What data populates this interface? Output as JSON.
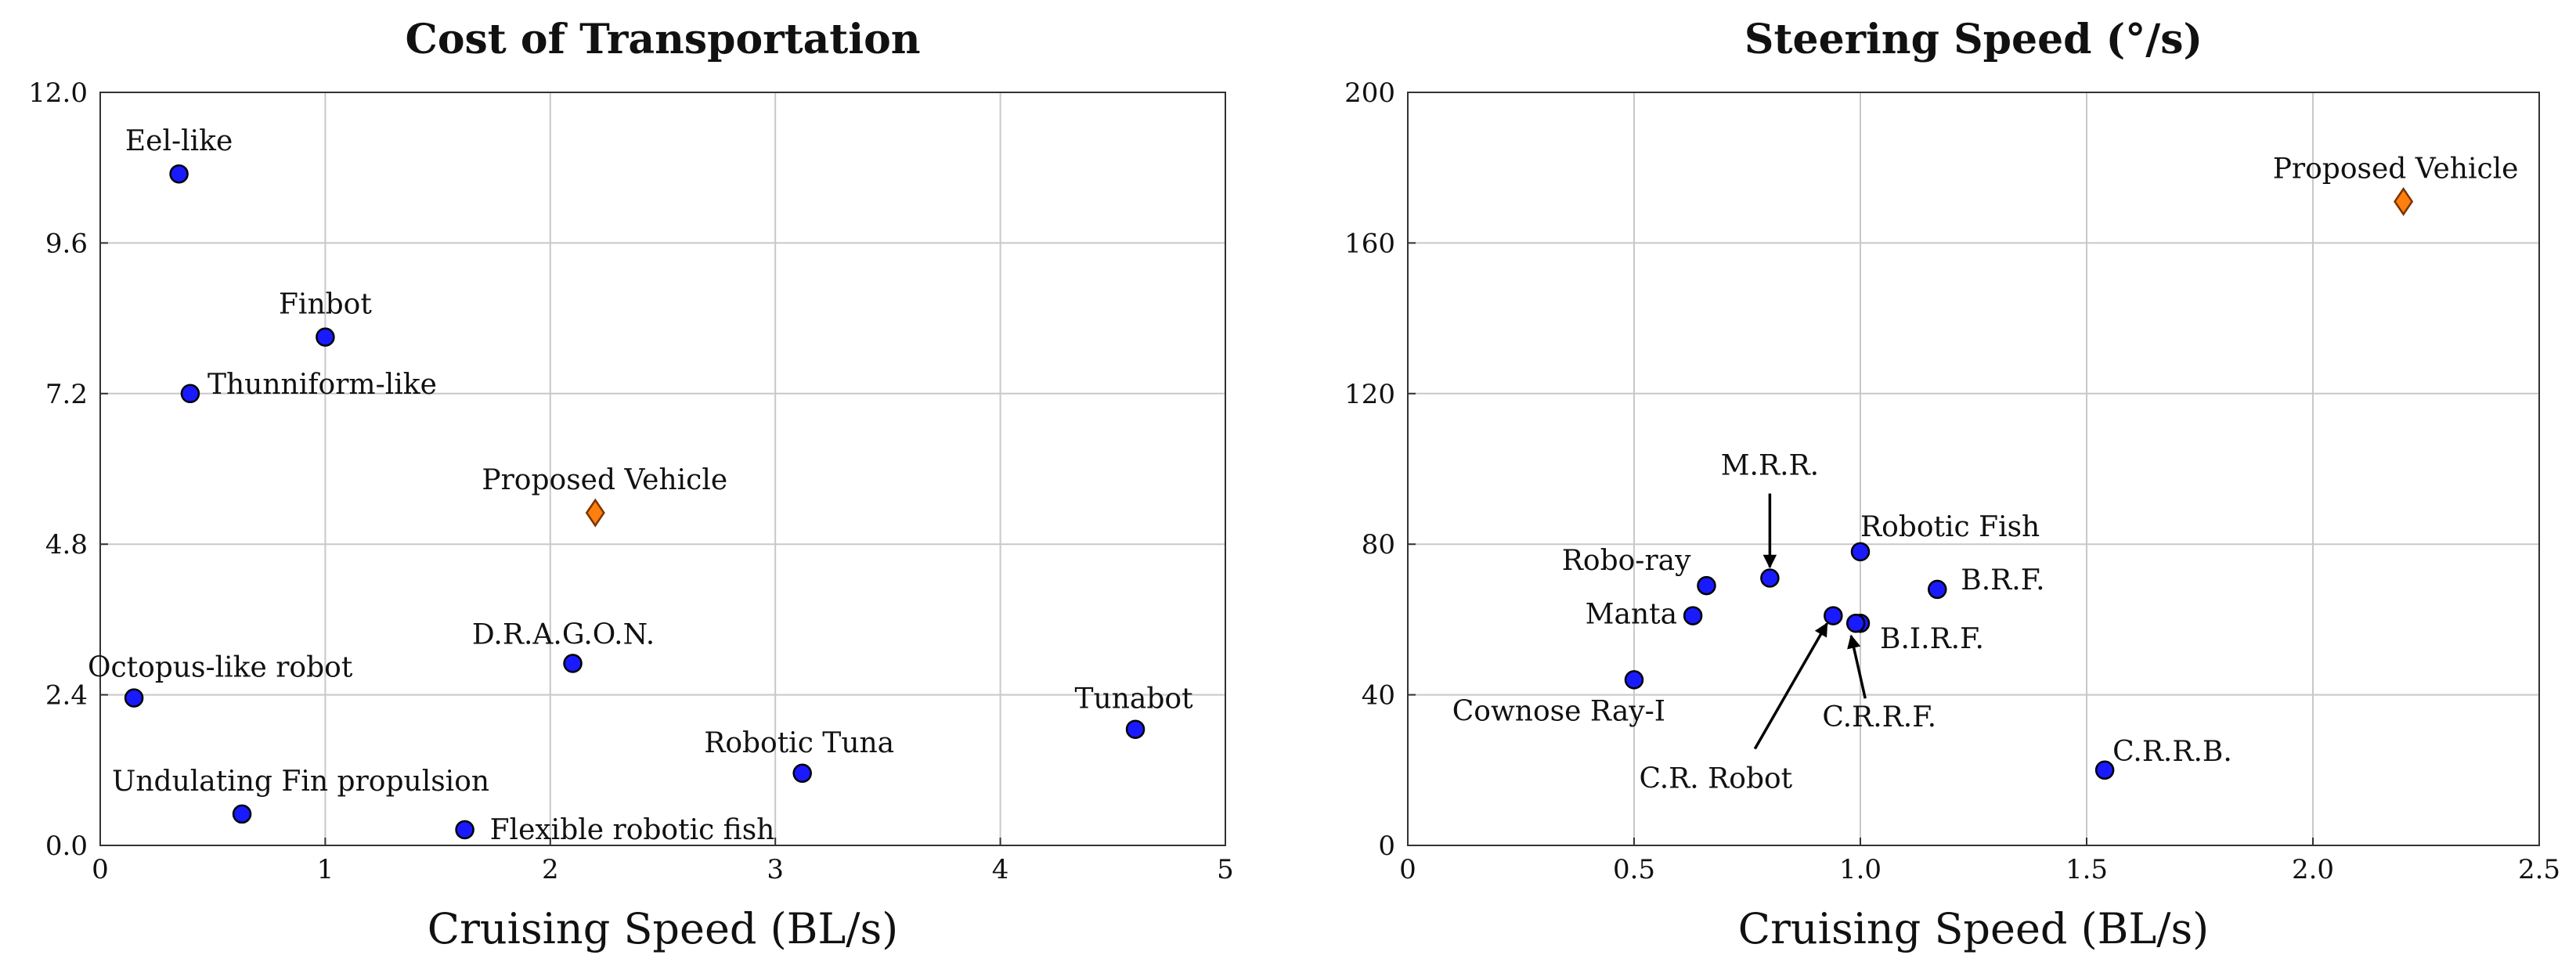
{
  "chart_data": [
    {
      "type": "scatter",
      "title": "Cost of Transportation",
      "xlabel": "Cruising Speed (BL/s)",
      "ylabel": "",
      "xlim": [
        0,
        5
      ],
      "ylim": [
        0,
        12
      ],
      "xticks": [
        "0",
        "1",
        "2",
        "3",
        "4",
        "5"
      ],
      "yticks": [
        "0.0",
        "2.4",
        "4.8",
        "7.2",
        "9.6",
        "12.0"
      ],
      "grid": true,
      "points": [
        {
          "label": "Eel-like",
          "x": 0.35,
          "y": 10.7,
          "highlight": false
        },
        {
          "label": "Finbot",
          "x": 1.0,
          "y": 8.1,
          "highlight": false
        },
        {
          "label": "Thunniform-like",
          "x": 0.4,
          "y": 7.2,
          "highlight": false
        },
        {
          "label": "Proposed Vehicle",
          "x": 2.2,
          "y": 5.3,
          "highlight": true
        },
        {
          "label": "D.R.A.G.O.N.",
          "x": 2.1,
          "y": 2.9,
          "highlight": false
        },
        {
          "label": "Octopus-like robot",
          "x": 0.15,
          "y": 2.35,
          "highlight": false
        },
        {
          "label": "Tunabot",
          "x": 4.6,
          "y": 1.85,
          "highlight": false
        },
        {
          "label": "Robotic Tuna",
          "x": 3.12,
          "y": 1.15,
          "highlight": false
        },
        {
          "label": "Undulating Fin propulsion",
          "x": 0.63,
          "y": 0.5,
          "highlight": false
        },
        {
          "label": "Flexible robotic fish",
          "x": 1.62,
          "y": 0.25,
          "highlight": false
        }
      ]
    },
    {
      "type": "scatter",
      "title": "Steering Speed (°/s)",
      "xlabel": "Cruising Speed (BL/s)",
      "ylabel": "",
      "xlim": [
        0,
        2.5
      ],
      "ylim": [
        0,
        200
      ],
      "xticks": [
        "0",
        "0.5",
        "1.0",
        "1.5",
        "2.0",
        "2.5"
      ],
      "yticks": [
        "0",
        "40",
        "80",
        "120",
        "160",
        "200"
      ],
      "grid": true,
      "points": [
        {
          "label": "Proposed Vehicle",
          "x": 2.2,
          "y": 171,
          "highlight": false
        },
        {
          "label": "Robotic Fish",
          "x": 1.0,
          "y": 78,
          "highlight": false
        },
        {
          "label": "M.R.R.",
          "x": 0.8,
          "y": 71,
          "highlight": false
        },
        {
          "label": "Robo-ray",
          "x": 0.66,
          "y": 69,
          "highlight": false
        },
        {
          "label": "B.R.F.",
          "x": 1.17,
          "y": 68,
          "highlight": false
        },
        {
          "label": "Manta",
          "x": 0.63,
          "y": 61,
          "highlight": false
        },
        {
          "label": "C.R. Robot",
          "x": 0.94,
          "y": 61,
          "highlight": false
        },
        {
          "label": "B.I.R.F.",
          "x": 1.0,
          "y": 59,
          "highlight": false
        },
        {
          "label": "C.R.R.F.",
          "x": 0.99,
          "y": 59,
          "highlight": false
        },
        {
          "label": "Cownose Ray-I",
          "x": 0.5,
          "y": 44,
          "highlight": false
        },
        {
          "label": "C.R.R.B.",
          "x": 1.54,
          "y": 20,
          "highlight": false
        }
      ]
    }
  ],
  "colors": {
    "point_fill": "#1a1aff",
    "proposed_fill": "#ff7f0e",
    "grid": "#c8c8c8"
  }
}
